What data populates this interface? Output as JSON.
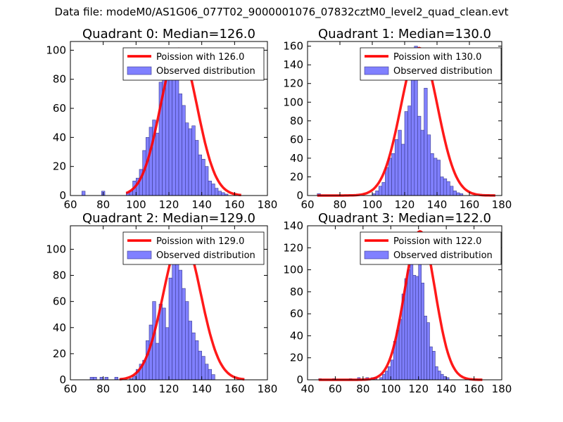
{
  "suptitle": "Data file: modeM0/AS1G06_077T02_9000001076_07832cztM0_level2_quad_clean.evt",
  "colors": {
    "bar_fill": "#8080ff",
    "bar_edge": "#3a3a8a",
    "line": "#ff0000"
  },
  "chart_data": [
    {
      "type": "bar",
      "title": "Quadrant 0: Median=126.0",
      "xlim": [
        60,
        180
      ],
      "ylim": [
        0,
        106
      ],
      "xticks": [
        60,
        80,
        100,
        120,
        140,
        160,
        180
      ],
      "yticks": [
        0,
        20,
        40,
        60,
        80,
        100
      ],
      "bin_start": 94,
      "bin_width": 2,
      "values": [
        2,
        3,
        10,
        12,
        18,
        31,
        40,
        47,
        52,
        43,
        78,
        80,
        100,
        96,
        80,
        82,
        70,
        62,
        50,
        46,
        48,
        38,
        28,
        25,
        20,
        10,
        8,
        5,
        3,
        2,
        1
      ],
      "outliers": [
        [
          67,
          3
        ],
        [
          79,
          3
        ]
      ],
      "line_label": "Poission with 126.0",
      "bar_label": "Observed distribution",
      "poisson": {
        "center": 126,
        "peak": 101,
        "sigma": 11.2,
        "x_range": [
          94,
          164
        ]
      }
    },
    {
      "type": "bar",
      "title": "Quadrant 1: Median=130.0",
      "xlim": [
        60,
        180
      ],
      "ylim": [
        0,
        165
      ],
      "xticks": [
        60,
        80,
        100,
        120,
        140,
        160,
        180
      ],
      "yticks": [
        0,
        20,
        40,
        60,
        80,
        100,
        120,
        140,
        160
      ],
      "bin_start": 100,
      "bin_width": 2,
      "values": [
        2,
        5,
        10,
        14,
        30,
        40,
        45,
        60,
        70,
        55,
        90,
        96,
        130,
        160,
        85,
        70,
        115,
        65,
        45,
        40,
        38,
        20,
        18,
        15,
        10,
        5,
        3,
        2
      ],
      "outliers": [
        [
          66,
          2
        ]
      ],
      "line_label": "Poission with 130.0",
      "bar_label": "Observed distribution",
      "poisson": {
        "center": 129,
        "peak": 158,
        "sigma": 11.3,
        "x_range": [
          66,
          176
        ]
      }
    },
    {
      "type": "bar",
      "title": "Quadrant 2: Median=129.0",
      "xlim": [
        60,
        180
      ],
      "ylim": [
        0,
        118
      ],
      "xticks": [
        60,
        80,
        100,
        120,
        140,
        160,
        180
      ],
      "yticks": [
        0,
        20,
        40,
        60,
        80,
        100
      ],
      "bin_start": 96,
      "bin_width": 2,
      "values": [
        1,
        3,
        8,
        12,
        15,
        30,
        42,
        60,
        28,
        58,
        55,
        40,
        78,
        100,
        94,
        84,
        70,
        60,
        45,
        36,
        30,
        22,
        18,
        12,
        8,
        4
      ],
      "outliers": [
        [
          72,
          2
        ],
        [
          74,
          2
        ],
        [
          78,
          2
        ],
        [
          81,
          2
        ],
        [
          87,
          2
        ],
        [
          90,
          1
        ]
      ],
      "line_label": "Poission with 129.0",
      "bar_label": "Observed distribution",
      "poisson": {
        "center": 128,
        "peak": 110,
        "sigma": 11.3,
        "x_range": [
          90,
          166
        ]
      }
    },
    {
      "type": "bar",
      "title": "Quadrant 3: Median=122.0",
      "xlim": [
        40,
        180
      ],
      "ylim": [
        0,
        140
      ],
      "xticks": [
        40,
        60,
        80,
        100,
        120,
        140,
        160,
        180
      ],
      "yticks": [
        0,
        20,
        40,
        60,
        80,
        100,
        120,
        140
      ],
      "bin_start": 92,
      "bin_width": 2,
      "values": [
        2,
        5,
        8,
        12,
        18,
        35,
        45,
        55,
        78,
        92,
        100,
        125,
        95,
        94,
        110,
        88,
        58,
        52,
        30,
        26,
        12,
        8,
        5,
        3,
        2
      ],
      "outliers": [
        [
          48,
          1
        ],
        [
          58,
          1
        ],
        [
          70,
          1
        ],
        [
          76,
          2
        ],
        [
          82,
          2
        ],
        [
          86,
          2
        ],
        [
          88,
          2
        ]
      ],
      "line_label": "Poission with 122.0",
      "bar_label": "Observed distribution",
      "poisson": {
        "center": 121,
        "peak": 135,
        "sigma": 10.9,
        "x_range": [
          48,
          166
        ]
      }
    }
  ]
}
